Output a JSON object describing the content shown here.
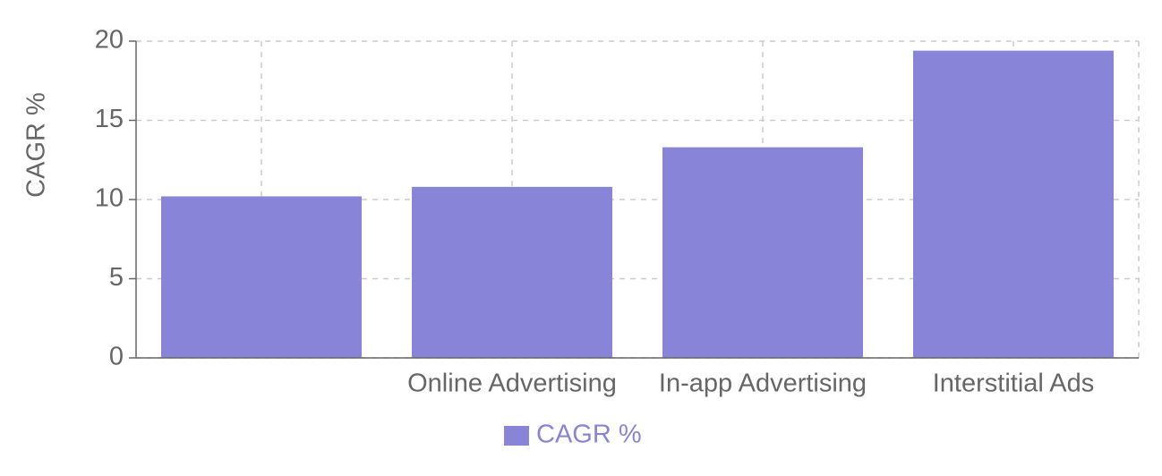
{
  "chart_data": {
    "type": "bar",
    "y_label": "CAGR %",
    "categories": [
      null,
      "Online Advertising",
      "In-app Advertising",
      "Interstitial Ads"
    ],
    "series": [
      {
        "name": "CAGR %",
        "color": "#8884d8",
        "values": [
          10.2,
          10.8,
          13.3,
          19.4
        ]
      }
    ],
    "ylim": [
      0,
      20
    ],
    "yticks": [
      0,
      5,
      10,
      15,
      20
    ],
    "grid": true,
    "legend": "bottom"
  }
}
